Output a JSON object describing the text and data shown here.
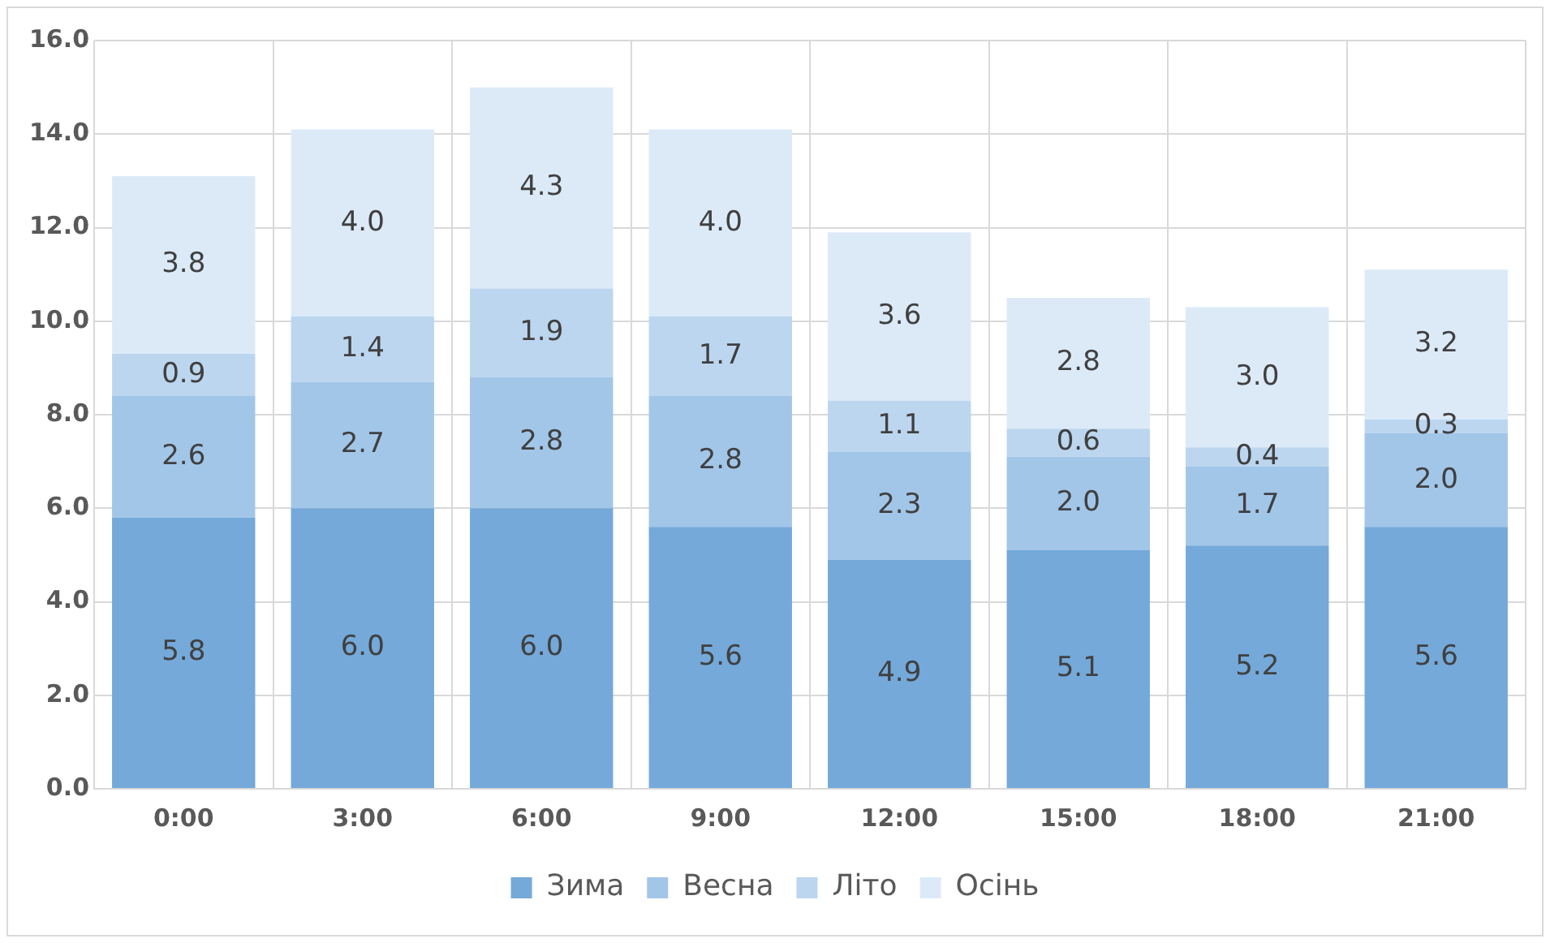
{
  "chart_data": {
    "type": "bar",
    "stacked": true,
    "categories": [
      "0:00",
      "3:00",
      "6:00",
      "9:00",
      "12:00",
      "15:00",
      "18:00",
      "21:00"
    ],
    "series": [
      {
        "name": "Зима",
        "color": "#74a9da",
        "values": [
          5.8,
          6.0,
          6.0,
          5.6,
          4.9,
          5.1,
          5.2,
          5.6
        ],
        "value_labels": [
          "5.8",
          "6.0",
          "6.0",
          "5.6",
          "4.9",
          "5.1",
          "5.2",
          "5.6"
        ]
      },
      {
        "name": "Весна",
        "color": "#a2c6e8",
        "values": [
          2.6,
          2.7,
          2.8,
          2.8,
          2.3,
          2.0,
          1.7,
          2.0
        ],
        "value_labels": [
          "2.6",
          "2.7",
          "2.8",
          "2.8",
          "2.3",
          "2.0",
          "1.7",
          "2.0"
        ]
      },
      {
        "name": "Літо",
        "color": "#bcd6ef",
        "values": [
          0.9,
          1.4,
          1.9,
          1.7,
          1.1,
          0.6,
          0.4,
          0.3
        ],
        "value_labels": [
          "0.9",
          "1.4",
          "1.9",
          "1.7",
          "1.1",
          "0.6",
          "0.4",
          "0.3"
        ]
      },
      {
        "name": "Осінь",
        "color": "#dceaf8",
        "values": [
          3.8,
          4.0,
          4.3,
          4.0,
          3.6,
          2.8,
          3.0,
          3.2
        ],
        "value_labels": [
          "3.8",
          "4.0",
          "4.3",
          "4.0",
          "3.6",
          "2.8",
          "3.0",
          "3.2"
        ]
      }
    ],
    "ylim": [
      0,
      16
    ],
    "yticks": [
      {
        "value": 0,
        "label": "0.0"
      },
      {
        "value": 2,
        "label": "2.0"
      },
      {
        "value": 4,
        "label": "4.0"
      },
      {
        "value": 6,
        "label": "6.0"
      },
      {
        "value": 8,
        "label": "8.0"
      },
      {
        "value": 10,
        "label": "10.0"
      },
      {
        "value": 12,
        "label": "12.0"
      },
      {
        "value": 14,
        "label": "14.0"
      },
      {
        "value": 16,
        "label": "16.0"
      }
    ],
    "grid": true,
    "legend": "bottom"
  }
}
